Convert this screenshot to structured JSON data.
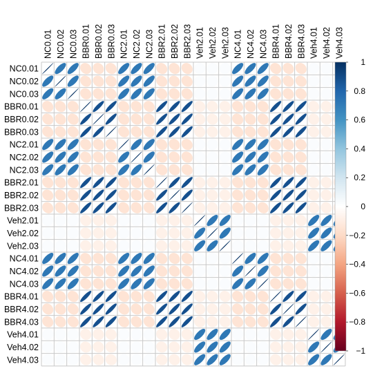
{
  "chart_data": {
    "type": "heatmap",
    "style": "ellipse correlation matrix",
    "title": "",
    "labels": [
      "NC0.01",
      "NC0.02",
      "NC0.03",
      "BBR0.01",
      "BBR0.02",
      "BBR0.03",
      "NC2.01",
      "NC2.02",
      "NC2.03",
      "BBR2.01",
      "BBR2.02",
      "BBR2.03",
      "Veh2.01",
      "Veh2.02",
      "Veh2.03",
      "NC4.01",
      "NC4.02",
      "NC4.03",
      "BBR4.01",
      "BBR4.02",
      "BBR4.03",
      "Veh4.01",
      "Veh4.02",
      "Veh4.03"
    ],
    "groups": [
      "NC",
      "BBR",
      "NC",
      "BBR",
      "Veh",
      "NC",
      "BBR",
      "Veh"
    ],
    "group_correlation": {
      "NC-NC": 0.72,
      "BBR-BBR": 0.88,
      "Veh-Veh": 0.72,
      "NC-BBR": -0.15,
      "NC-Veh": 0.02,
      "BBR-Veh": -0.08
    },
    "diagonal": 1.0,
    "colorbar": {
      "min": -1,
      "max": 1,
      "ticks": [
        "1",
        "0.8",
        "0.6",
        "0.4",
        "0.2",
        "0",
        "−0.2",
        "−0.4",
        "−0.6",
        "−0.8",
        "−1"
      ],
      "colors": [
        "#67001F",
        "#B2182B",
        "#D6604D",
        "#F4A582",
        "#FDDBC7",
        "#FFFFFF",
        "#D1E5F0",
        "#92C5DE",
        "#4393C3",
        "#2166AC",
        "#053061"
      ]
    },
    "grid": true
  }
}
